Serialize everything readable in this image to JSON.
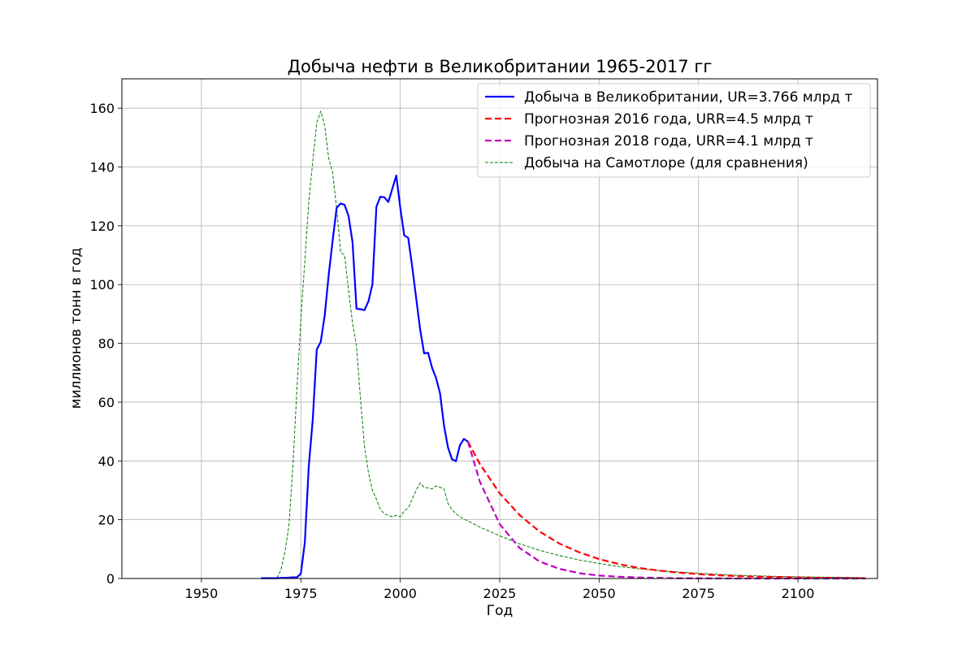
{
  "chart_data": {
    "type": "line",
    "title": "Добыча нефти в Великобритании 1965-2017 гг",
    "xlabel": "Год",
    "ylabel": "миллионов тонн в год",
    "xlim": [
      1930,
      2120
    ],
    "ylim": [
      0,
      170
    ],
    "x_ticks": [
      1950,
      1975,
      2000,
      2025,
      2050,
      2075,
      2100
    ],
    "y_ticks": [
      0,
      20,
      40,
      60,
      80,
      100,
      120,
      140,
      160
    ],
    "grid": true,
    "legend_position": "top-right",
    "series": [
      {
        "name": "Добыча в Великобритании, UR=3.766 млрд т",
        "color": "#0000ff",
        "style": "solid",
        "x": [
          1965,
          1966,
          1967,
          1968,
          1969,
          1970,
          1971,
          1972,
          1973,
          1974,
          1975,
          1976,
          1977,
          1978,
          1979,
          1980,
          1981,
          1982,
          1983,
          1984,
          1985,
          1986,
          1987,
          1988,
          1989,
          1990,
          1991,
          1992,
          1993,
          1994,
          1995,
          1996,
          1997,
          1998,
          1999,
          2000,
          2001,
          2002,
          2003,
          2004,
          2005,
          2006,
          2007,
          2008,
          2009,
          2010,
          2011,
          2012,
          2013,
          2014,
          2015,
          2016,
          2017
        ],
        "y": [
          0.1,
          0.1,
          0.1,
          0.1,
          0.1,
          0.2,
          0.2,
          0.3,
          0.4,
          0.4,
          1.6,
          12.2,
          38.3,
          54.1,
          77.9,
          80.5,
          89.5,
          103.2,
          115.0,
          126.1,
          127.6,
          127.1,
          123.3,
          114.4,
          91.8,
          91.6,
          91.3,
          94.3,
          100.1,
          126.5,
          129.9,
          129.7,
          128.1,
          132.6,
          137.1,
          126.2,
          116.7,
          115.9,
          106.1,
          95.4,
          84.7,
          76.6,
          76.8,
          71.7,
          68.2,
          63.0,
          52.0,
          44.6,
          40.6,
          39.9,
          45.3,
          47.5,
          46.6
        ]
      },
      {
        "name": "Прогнозная 2016 года, URR=4.5 млрд т",
        "color": "#ff0000",
        "style": "dashed",
        "x": [
          2017,
          2020,
          2025,
          2030,
          2035,
          2040,
          2045,
          2050,
          2055,
          2060,
          2065,
          2070,
          2075,
          2080,
          2085,
          2090,
          2095,
          2100,
          2105,
          2110,
          2117
        ],
        "y": [
          46.6,
          39.0,
          29.0,
          21.6,
          16.0,
          11.9,
          8.9,
          6.6,
          4.9,
          3.6,
          2.7,
          2.0,
          1.5,
          1.1,
          0.8,
          0.6,
          0.5,
          0.35,
          0.26,
          0.19,
          0.1
        ]
      },
      {
        "name": "Прогнозная 2018 года, URR=4.1 млрд т",
        "color": "#bf00bf",
        "style": "dashed",
        "x": [
          2017,
          2020,
          2025,
          2030,
          2035,
          2040,
          2045,
          2050,
          2055,
          2060,
          2065,
          2070,
          2075,
          2080,
          2085,
          2090,
          2095,
          2100,
          2105,
          2110,
          2117
        ],
        "y": [
          46.6,
          33.0,
          18.5,
          10.4,
          5.8,
          3.3,
          1.8,
          1.0,
          0.6,
          0.35,
          0.2,
          0.1,
          0.06,
          0.03,
          0.02,
          0.01,
          0.0,
          0.0,
          0.0,
          0.0,
          0.0
        ]
      },
      {
        "name": "Добыча на Самотлоре (для сравнения)",
        "color": "#008000",
        "style": "dashed-thin",
        "x": [
          1969,
          1970,
          1971,
          1972,
          1973,
          1974,
          1975,
          1976,
          1977,
          1978,
          1979,
          1980,
          1981,
          1982,
          1983,
          1984,
          1985,
          1986,
          1987,
          1988,
          1989,
          1990,
          1991,
          1992,
          1993,
          1994,
          1995,
          1996,
          1997,
          1998,
          1999,
          2000,
          2001,
          2002,
          2003,
          2004,
          2005,
          2006,
          2007,
          2008,
          2009,
          2010,
          2011,
          2012,
          2013,
          2014,
          2015,
          2020,
          2025,
          2030,
          2035,
          2040,
          2045,
          2050,
          2055,
          2060,
          2065,
          2070,
          2075,
          2080,
          2085,
          2090,
          2095,
          2100,
          2105,
          2110,
          2117
        ],
        "y": [
          0.1,
          3.0,
          9.0,
          18.0,
          38.0,
          64.0,
          88.0,
          108.0,
          128.0,
          142.0,
          155.0,
          159.0,
          154.0,
          143.0,
          138.0,
          126.0,
          111.0,
          110.0,
          98.0,
          87.0,
          79.0,
          61.0,
          45.0,
          36.0,
          30.0,
          27.0,
          23.5,
          22.0,
          21.5,
          21.0,
          21.5,
          21.0,
          23.0,
          24.0,
          27.0,
          30.0,
          32.5,
          31.0,
          30.8,
          30.5,
          31.5,
          31.0,
          30.5,
          25.5,
          23.5,
          22.0,
          21.0,
          17.5,
          14.5,
          11.8,
          9.6,
          7.8,
          6.3,
          5.1,
          4.1,
          3.3,
          2.7,
          2.2,
          1.8,
          1.4,
          1.1,
          0.9,
          0.7,
          0.6,
          0.5,
          0.4,
          0.3
        ]
      }
    ]
  }
}
